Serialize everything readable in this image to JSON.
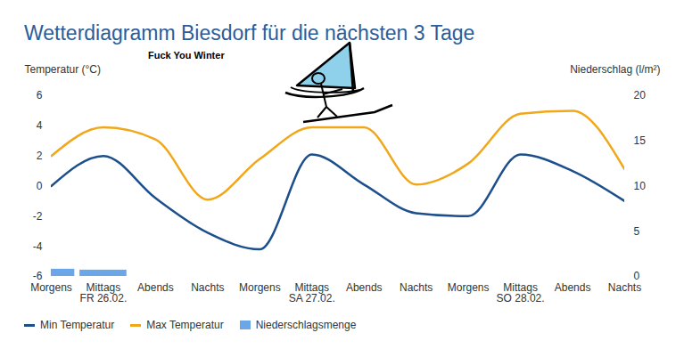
{
  "chart_data": {
    "type": "line",
    "title": "Wetterdiagramm Biesdorf für die nächsten 3 Tage",
    "annotation": "Fuck You Winter",
    "categories": [
      "Morgens",
      "Mittags",
      "Abends",
      "Nachts",
      "Morgens",
      "Mittags",
      "Abends",
      "Nachts",
      "Morgens",
      "Mittags",
      "Abends",
      "Nachts"
    ],
    "day_labels": [
      null,
      "FR 26.02.",
      null,
      null,
      null,
      "SA 27.02.",
      null,
      null,
      null,
      "SO 28.02.",
      null,
      null
    ],
    "y_label": "Temperatur (°C)",
    "y2_label": "Niederschlag (l/m²)",
    "ylim": [
      -6,
      6
    ],
    "yticks": [
      -6,
      -4,
      -2,
      0,
      2,
      4,
      6
    ],
    "y2lim": [
      0,
      20
    ],
    "y2ticks": [
      0,
      5,
      10,
      15,
      20
    ],
    "grid": false,
    "legend": "bottom",
    "series": [
      {
        "name": "Min Temperatur",
        "color": "#1c4f8b",
        "values": [
          0.0,
          2.0,
          -0.8,
          -3.1,
          -4.2,
          2.1,
          0.1,
          -1.8,
          -2.0,
          2.1,
          1.0,
          -1.0
        ]
      },
      {
        "name": "Max Temperatur",
        "color": "#f0a81a",
        "values": [
          2.0,
          3.9,
          3.1,
          -0.9,
          1.8,
          3.9,
          3.9,
          0.1,
          1.5,
          4.8,
          5.0,
          1.1
        ]
      },
      {
        "name": "Niederschlagsmenge",
        "type": "bar",
        "axis": "y2",
        "color": "#6aa6e8",
        "values": [
          0.8,
          0.7,
          0,
          0,
          0,
          0,
          0,
          0,
          0,
          0,
          0,
          0
        ]
      }
    ]
  }
}
